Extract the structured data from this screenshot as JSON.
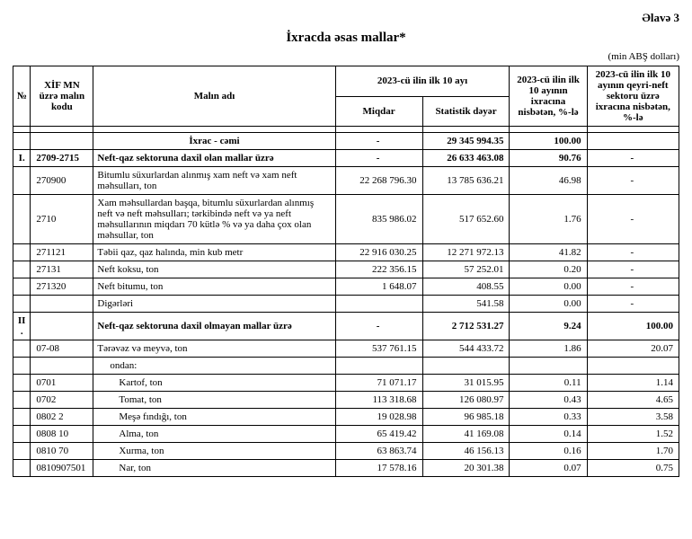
{
  "appendix": "Əlavə 3",
  "title": "İxracda əsas mallar*",
  "unit": "(min ABŞ dolları)",
  "headers": {
    "num": "№",
    "code": "XİF MN üzrə malın kodu",
    "name": "Malın adı",
    "period": "2023-cü ilin ilk 10 ayı",
    "qty": "Miqdar",
    "val": "Statistik dəyər",
    "pct1": "2023-cü ilin ilk 10 ayının ixracına nisbətən, %-lə",
    "pct2": "2023-cü ilin ilk 10 ayının qeyri-neft sektoru üzrə ixracına nisbətən, %-lə"
  },
  "rows": [
    {
      "bold": true,
      "num": "",
      "code": "",
      "name": "İxrac - cəmi",
      "qty": "-",
      "val": "29 345 994.35",
      "pct1": "100.00",
      "pct2": "",
      "indent": 0,
      "centerName": true
    },
    {
      "bold": true,
      "num": "I.",
      "code": "2709-2715",
      "name": "Neft-qaz sektoruna daxil olan mallar üzrə",
      "qty": "-",
      "val": "26 633 463.08",
      "pct1": "90.76",
      "pct2": "-",
      "indent": 0
    },
    {
      "bold": false,
      "num": "",
      "code": "270900",
      "name": "Bitumlu süxurlardan alınmış xam neft və xam neft məhsulları, ton",
      "qty": "22 268 796.30",
      "val": "13 785 636.21",
      "pct1": "46.98",
      "pct2": "-",
      "indent": 0
    },
    {
      "bold": false,
      "num": "",
      "code": "2710",
      "name": "Xam məhsullardan başqa, bitumlu süxurlardan alınmış neft və neft məhsulları; tərkibində neft və ya neft məhsullarının miqdarı 70 kütlə % və ya daha çox olan məhsullar, ton",
      "qty": "835 986.02",
      "val": "517 652.60",
      "pct1": "1.76",
      "pct2": "-",
      "indent": 0
    },
    {
      "bold": false,
      "num": "",
      "code": "271121",
      "name": "Təbii qaz, qaz halında, min kub metr",
      "qty": "22 916 030.25",
      "val": "12 271 972.13",
      "pct1": "41.82",
      "pct2": "-",
      "indent": 0
    },
    {
      "bold": false,
      "num": "",
      "code": "27131",
      "name": "Neft koksu, ton",
      "qty": "222 356.15",
      "val": "57 252.01",
      "pct1": "0.20",
      "pct2": "-",
      "indent": 0
    },
    {
      "bold": false,
      "num": "",
      "code": "271320",
      "name": "Neft bitumu, ton",
      "qty": "1 648.07",
      "val": "408.55",
      "pct1": "0.00",
      "pct2": "-",
      "indent": 0
    },
    {
      "bold": false,
      "num": "",
      "code": "",
      "name": "Digərləri",
      "qty": "",
      "val": "541.58",
      "pct1": "0.00",
      "pct2": "-",
      "indent": 0
    },
    {
      "bold": true,
      "num": "II.",
      "code": "",
      "name": "Neft-qaz sektoruna daxil olmayan mallar üzrə",
      "qty": "-",
      "val": "2 712 531.27",
      "pct1": "9.24",
      "pct2": "100.00",
      "indent": 0
    },
    {
      "bold": false,
      "num": "",
      "code": "07-08",
      "name": "Tərəvəz və meyvə, ton",
      "qty": "537 761.15",
      "val": "544 433.72",
      "pct1": "1.86",
      "pct2": "20.07",
      "indent": 0
    },
    {
      "bold": false,
      "num": "",
      "code": "",
      "name": "ondan:",
      "qty": "",
      "val": "",
      "pct1": "",
      "pct2": "",
      "indent": 1
    },
    {
      "bold": false,
      "num": "",
      "code": "0701",
      "name": "Kartof, ton",
      "qty": "71 071.17",
      "val": "31 015.95",
      "pct1": "0.11",
      "pct2": "1.14",
      "indent": 2
    },
    {
      "bold": false,
      "num": "",
      "code": "0702",
      "name": "Tomat, ton",
      "qty": "113 318.68",
      "val": "126 080.97",
      "pct1": "0.43",
      "pct2": "4.65",
      "indent": 2
    },
    {
      "bold": false,
      "num": "",
      "code": "0802 2",
      "name": "Meşə fındığı, ton",
      "qty": "19 028.98",
      "val": "96 985.18",
      "pct1": "0.33",
      "pct2": "3.58",
      "indent": 2
    },
    {
      "bold": false,
      "num": "",
      "code": "0808 10",
      "name": "Alma, ton",
      "qty": "65 419.42",
      "val": "41 169.08",
      "pct1": "0.14",
      "pct2": "1.52",
      "indent": 2
    },
    {
      "bold": false,
      "num": "",
      "code": "0810 70",
      "name": "Xurma, ton",
      "qty": "63 863.74",
      "val": "46 156.13",
      "pct1": "0.16",
      "pct2": "1.70",
      "indent": 2
    },
    {
      "bold": false,
      "num": "",
      "code": "0810907501",
      "name": "Nar, ton",
      "qty": "17 578.16",
      "val": "20 301.38",
      "pct1": "0.07",
      "pct2": "0.75",
      "indent": 2
    }
  ]
}
